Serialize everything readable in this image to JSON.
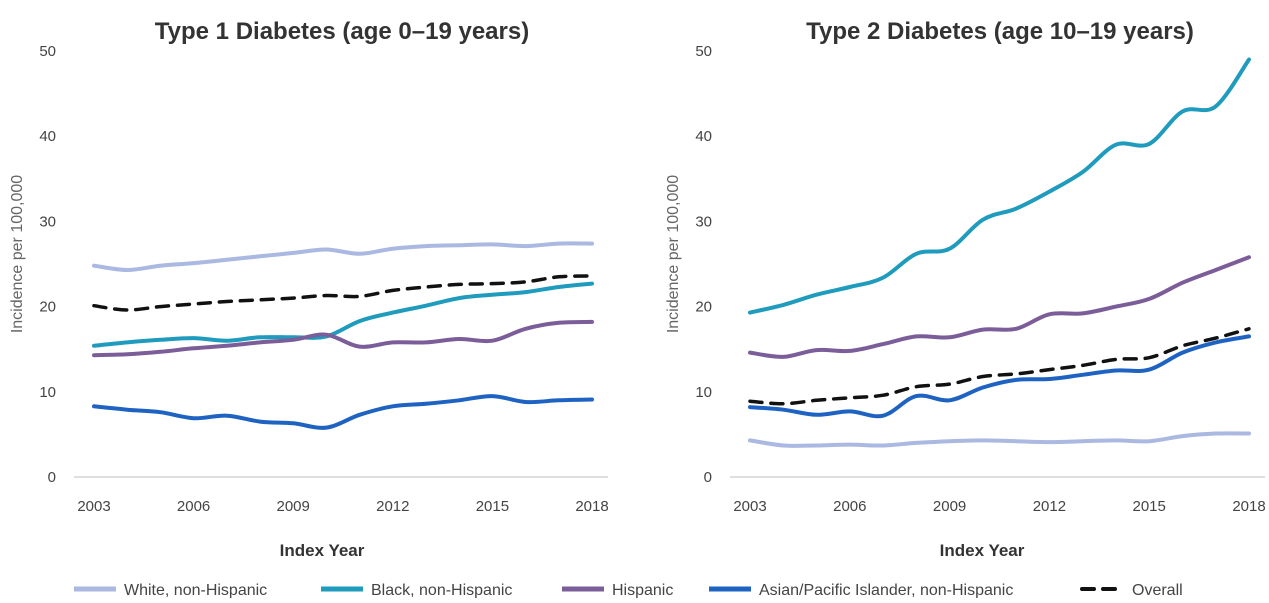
{
  "chart_data": [
    {
      "type": "line",
      "title": "Type 1 Diabetes (age 0–19 years)",
      "xlabel": "Index Year",
      "ylabel": "Incidence per 100,000",
      "xlim": [
        2003,
        2018
      ],
      "ylim": [
        0,
        50
      ],
      "xticks": [
        "2003",
        "2006",
        "2009",
        "2012",
        "2015",
        "2018"
      ],
      "yticks": [
        "0",
        "10",
        "20",
        "30",
        "40",
        "50"
      ],
      "grid": false,
      "x": [
        2003,
        2004,
        2005,
        2006,
        2007,
        2008,
        2009,
        2010,
        2011,
        2012,
        2013,
        2014,
        2015,
        2016,
        2017,
        2018
      ],
      "series": [
        {
          "name": "White, non-Hispanic",
          "color": "#aab8e2",
          "values": [
            24.8,
            24.3,
            24.8,
            25.1,
            25.5,
            25.9,
            26.3,
            26.7,
            26.2,
            26.8,
            27.1,
            27.2,
            27.3,
            27.1,
            27.4,
            27.4
          ]
        },
        {
          "name": "Black, non-Hispanic",
          "color": "#1f9bbd",
          "values": [
            15.4,
            15.8,
            16.1,
            16.3,
            16.0,
            16.4,
            16.4,
            16.5,
            18.3,
            19.3,
            20.1,
            21.0,
            21.4,
            21.7,
            22.3,
            22.7
          ]
        },
        {
          "name": "Hispanic",
          "color": "#7b5e99",
          "values": [
            14.3,
            14.4,
            14.7,
            15.1,
            15.4,
            15.8,
            16.1,
            16.7,
            15.3,
            15.8,
            15.8,
            16.2,
            16.0,
            17.4,
            18.1,
            18.2
          ]
        },
        {
          "name": "Asian/Pacific Islander, non-Hispanic",
          "color": "#1f63c2",
          "values": [
            8.3,
            7.9,
            7.6,
            6.9,
            7.2,
            6.5,
            6.3,
            5.8,
            7.3,
            8.3,
            8.6,
            9.0,
            9.5,
            8.8,
            9.0,
            9.1
          ]
        },
        {
          "name": "Overall",
          "color": "#111111",
          "dashed": true,
          "values": [
            20.1,
            19.6,
            20.0,
            20.3,
            20.6,
            20.8,
            21.0,
            21.3,
            21.2,
            21.9,
            22.3,
            22.6,
            22.7,
            22.9,
            23.5,
            23.6
          ]
        }
      ]
    },
    {
      "type": "line",
      "title": "Type 2 Diabetes (age 10–19 years)",
      "xlabel": "Index Year",
      "ylabel": "Incidence per 100,000",
      "xlim": [
        2003,
        2018
      ],
      "ylim": [
        0,
        50
      ],
      "xticks": [
        "2003",
        "2006",
        "2009",
        "2012",
        "2015",
        "2018"
      ],
      "yticks": [
        "0",
        "10",
        "20",
        "30",
        "40",
        "50"
      ],
      "grid": false,
      "x": [
        2003,
        2004,
        2005,
        2006,
        2007,
        2008,
        2009,
        2010,
        2011,
        2012,
        2013,
        2014,
        2015,
        2016,
        2017,
        2018
      ],
      "series": [
        {
          "name": "White, non-Hispanic",
          "color": "#aab8e2",
          "values": [
            4.3,
            3.7,
            3.7,
            3.8,
            3.7,
            4.0,
            4.2,
            4.3,
            4.2,
            4.1,
            4.2,
            4.3,
            4.2,
            4.8,
            5.1,
            5.1
          ]
        },
        {
          "name": "Black, non-Hispanic",
          "color": "#1f9bbd",
          "values": [
            19.3,
            20.2,
            21.4,
            22.3,
            23.4,
            26.2,
            26.8,
            30.2,
            31.5,
            33.5,
            35.8,
            39.0,
            39.1,
            42.9,
            43.5,
            49.0
          ]
        },
        {
          "name": "Hispanic",
          "color": "#7b5e99",
          "values": [
            14.6,
            14.1,
            14.9,
            14.8,
            15.6,
            16.5,
            16.4,
            17.3,
            17.4,
            19.1,
            19.2,
            20.0,
            20.9,
            22.8,
            24.3,
            25.8
          ]
        },
        {
          "name": "Asian/Pacific Islander, non-Hispanic",
          "color": "#1f63c2",
          "values": [
            8.2,
            7.9,
            7.3,
            7.7,
            7.2,
            9.5,
            9.0,
            10.5,
            11.4,
            11.5,
            12.0,
            12.5,
            12.6,
            14.6,
            15.8,
            16.5
          ]
        },
        {
          "name": "Overall",
          "color": "#111111",
          "dashed": true,
          "values": [
            8.9,
            8.6,
            9.0,
            9.3,
            9.6,
            10.6,
            10.9,
            11.8,
            12.1,
            12.6,
            13.1,
            13.8,
            14.0,
            15.4,
            16.3,
            17.4
          ]
        }
      ]
    }
  ],
  "legend": {
    "placement": "bottom",
    "items": [
      {
        "label": "White, non-Hispanic",
        "color": "#aab8e2"
      },
      {
        "label": "Black, non-Hispanic",
        "color": "#1f9bbd"
      },
      {
        "label": "Hispanic",
        "color": "#7b5e99"
      },
      {
        "label": "Asian/Pacific Islander, non-Hispanic",
        "color": "#1f63c2"
      },
      {
        "label": "Overall",
        "color": "#111111",
        "dashed": true
      }
    ]
  }
}
